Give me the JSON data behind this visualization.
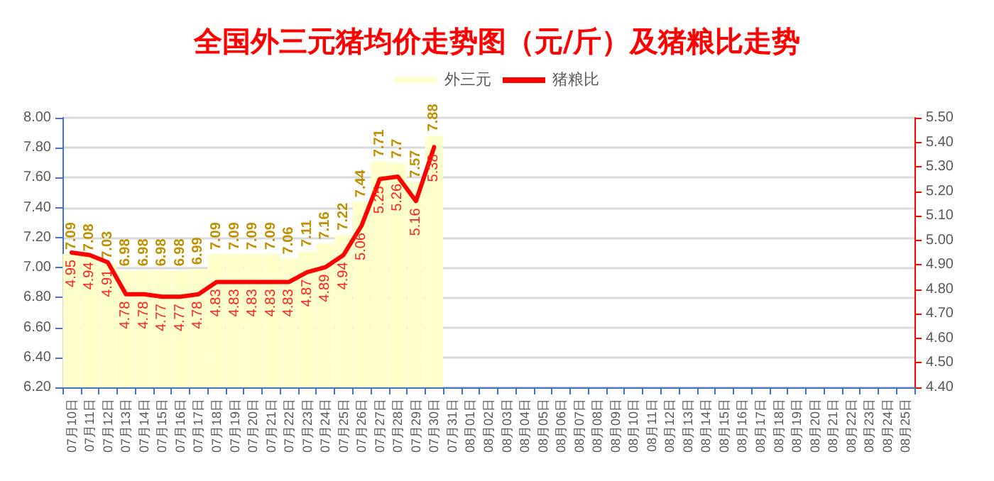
{
  "chart_data": {
    "type": "bar",
    "title": "全国外三元猪均价走势图（元/斤）及猪粮比走势",
    "categories": [
      "07月10日",
      "07月11日",
      "07月12日",
      "07月13日",
      "07月14日",
      "07月15日",
      "07月16日",
      "07月17日",
      "07月18日",
      "07月19日",
      "07月20日",
      "07月21日",
      "07月22日",
      "07月23日",
      "07月24日",
      "07月25日",
      "07月26日",
      "07月27日",
      "07月28日",
      "07月29日",
      "07月30日",
      "07月31日",
      "08月01日",
      "08月02日",
      "08月03日",
      "08月04日",
      "08月05日",
      "08月06日",
      "08月07日",
      "08月08日",
      "08月09日",
      "08月10日",
      "08月11日",
      "08月12日",
      "08月13日",
      "08月14日",
      "08月15日",
      "08月16日",
      "08月17日",
      "08月18日",
      "08月19日",
      "08月20日",
      "08月21日",
      "08月22日",
      "08月23日",
      "08月24日",
      "08月25日"
    ],
    "series": [
      {
        "name": "外三元",
        "color": "#ffffcc",
        "values": [
          7.09,
          7.08,
          7.03,
          6.98,
          6.98,
          6.98,
          6.98,
          6.99,
          7.09,
          7.09,
          7.09,
          7.09,
          7.06,
          7.11,
          7.16,
          7.22,
          7.44,
          7.71,
          7.7,
          7.57,
          7.88,
          null,
          null,
          null,
          null,
          null,
          null,
          null,
          null,
          null,
          null,
          null,
          null,
          null,
          null,
          null,
          null,
          null,
          null,
          null,
          null,
          null,
          null,
          null,
          null,
          null,
          null
        ]
      },
      {
        "name": "猪粮比",
        "type": "line",
        "axis": "y2",
        "color": "#ff0000",
        "values": [
          4.95,
          4.94,
          4.91,
          4.78,
          4.78,
          4.77,
          4.77,
          4.78,
          4.83,
          4.83,
          4.83,
          4.83,
          4.83,
          4.87,
          4.89,
          4.94,
          5.06,
          5.25,
          5.26,
          5.16,
          5.38,
          null,
          null,
          null,
          null,
          null,
          null,
          null,
          null,
          null,
          null,
          null,
          null,
          null,
          null,
          null,
          null,
          null,
          null,
          null,
          null,
          null,
          null,
          null,
          null,
          null,
          null
        ]
      }
    ],
    "ylim": [
      6.2,
      8.0
    ],
    "yticks": [
      {
        "value": 6.2,
        "label": "6.20"
      },
      {
        "value": 6.4,
        "label": "6.40"
      },
      {
        "value": 6.6,
        "label": "6.60"
      },
      {
        "value": 6.8,
        "label": "6.80"
      },
      {
        "value": 7.0,
        "label": "7.00"
      },
      {
        "value": 7.2,
        "label": "7.20"
      },
      {
        "value": 7.4,
        "label": "7.40"
      },
      {
        "value": 7.6,
        "label": "7.60"
      },
      {
        "value": 7.8,
        "label": "7.80"
      },
      {
        "value": 8.0,
        "label": "8.00"
      }
    ],
    "y2lim": [
      4.4,
      5.5
    ],
    "y2ticks": [
      {
        "value": 4.4,
        "label": "4.40"
      },
      {
        "value": 4.5,
        "label": "4.50"
      },
      {
        "value": 4.6,
        "label": "4.60"
      },
      {
        "value": 4.7,
        "label": "4.70"
      },
      {
        "value": 4.8,
        "label": "4.80"
      },
      {
        "value": 4.9,
        "label": "4.90"
      },
      {
        "value": 5.0,
        "label": "5.00"
      },
      {
        "value": 5.1,
        "label": "5.10"
      },
      {
        "value": 5.2,
        "label": "5.20"
      },
      {
        "value": 5.3,
        "label": "5.30"
      },
      {
        "value": 5.4,
        "label": "5.40"
      },
      {
        "value": 5.5,
        "label": "5.50"
      }
    ],
    "data_labels": true,
    "grid": "y",
    "legend": "top",
    "marker": "none",
    "line_style": "solid"
  }
}
